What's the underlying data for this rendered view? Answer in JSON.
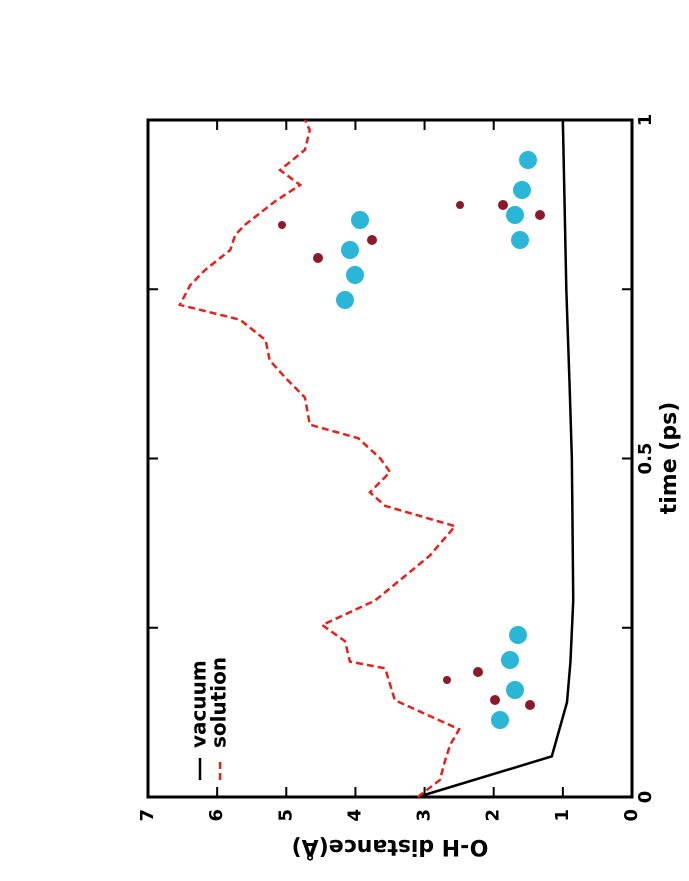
{
  "chart_data": {
    "type": "line",
    "xlabel": "time (ps)",
    "ylabel": "O-H distance(Å)",
    "orientation": "rotated-ccw",
    "xlim": [
      0,
      1
    ],
    "xticks": [
      0,
      0.5,
      1
    ],
    "xminorticks": [
      0.25,
      0.75
    ],
    "ylim": [
      0,
      7
    ],
    "yticks": [
      0,
      1,
      2,
      3,
      4,
      5,
      6,
      7
    ],
    "legend": "upper left",
    "series": [
      {
        "name": "vacuum",
        "color": "#000000",
        "dash": "solid",
        "x": [
          0,
          0.06,
          0.14,
          0.2,
          0.29,
          0.4,
          0.5,
          0.6,
          0.75,
          0.9,
          1
        ],
        "values": [
          3.1,
          1.16,
          0.94,
          0.89,
          0.85,
          0.86,
          0.87,
          0.9,
          0.95,
          0.98,
          1.0
        ]
      },
      {
        "name": "solution",
        "color": "#e8201c",
        "dash": "dashed",
        "x": [
          0,
          0.025,
          0.055,
          0.077,
          0.1,
          0.143,
          0.19,
          0.2,
          0.23,
          0.254,
          0.29,
          0.32,
          0.357,
          0.4,
          0.43,
          0.45,
          0.48,
          0.5,
          0.53,
          0.55,
          0.59,
          0.62,
          0.645,
          0.675,
          0.705,
          0.727,
          0.756,
          0.778,
          0.808,
          0.83,
          0.845,
          0.88,
          0.904,
          0.926,
          0.956,
          0.985,
          1
        ],
        "values": [
          3.1,
          2.78,
          2.7,
          2.63,
          2.5,
          3.43,
          3.57,
          4.08,
          4.15,
          4.48,
          3.72,
          3.36,
          2.92,
          2.56,
          3.57,
          3.79,
          3.5,
          3.64,
          3.96,
          4.66,
          4.73,
          5.02,
          5.24,
          5.3,
          5.67,
          6.54,
          6.39,
          6.18,
          5.81,
          5.74,
          5.6,
          5.16,
          4.8,
          5.09,
          4.73,
          4.66,
          4.73
        ]
      }
    ]
  }
}
